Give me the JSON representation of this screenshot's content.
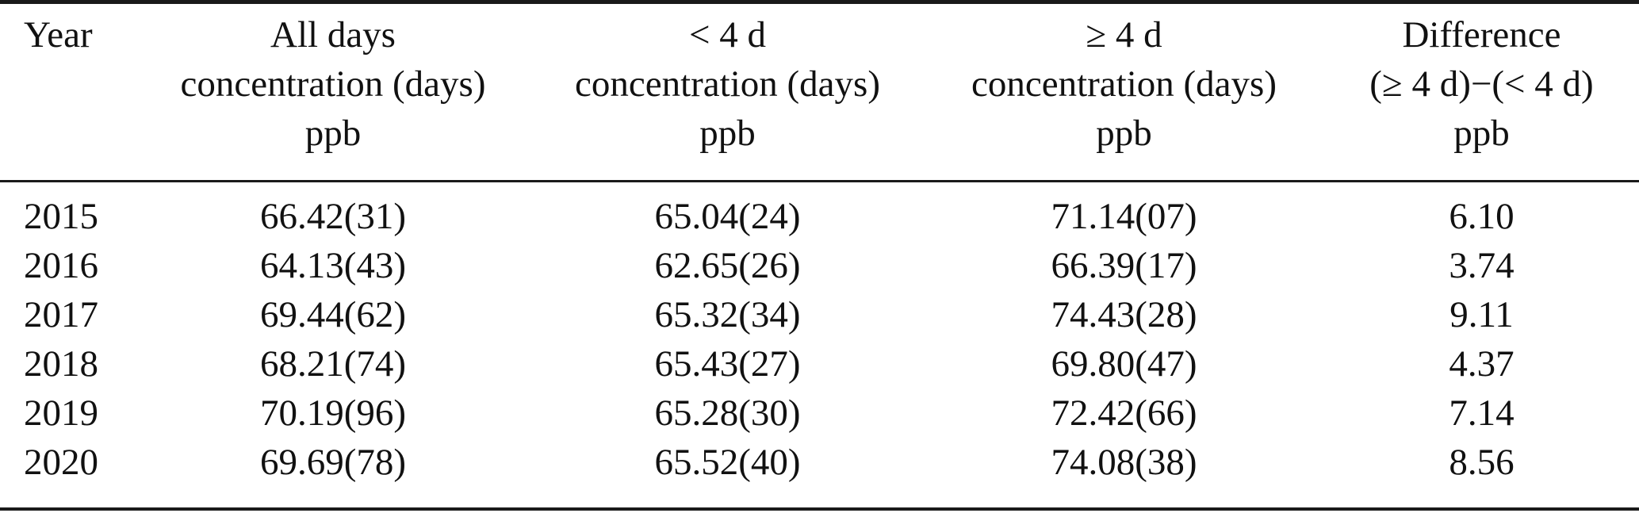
{
  "table": {
    "header": {
      "col1": {
        "line1": "Year",
        "line2": "",
        "line3": ""
      },
      "col2": {
        "line1": "All days",
        "line2": "concentration (days)",
        "line3": "ppb"
      },
      "col3": {
        "line1": "< 4 d",
        "line2": "concentration (days)",
        "line3": "ppb"
      },
      "col4": {
        "line1": "≥ 4 d",
        "line2": "concentration (days)",
        "line3": "ppb"
      },
      "col5": {
        "line1": "Difference",
        "line2": "(≥ 4 d)−(< 4 d)",
        "line3": "ppb"
      }
    },
    "rows": [
      {
        "year": "2015",
        "all_days": "66.42(31)",
        "lt_4d": "65.04(24)",
        "ge_4d": "71.14(07)",
        "difference": "6.10"
      },
      {
        "year": "2016",
        "all_days": "64.13(43)",
        "lt_4d": "62.65(26)",
        "ge_4d": "66.39(17)",
        "difference": "3.74"
      },
      {
        "year": "2017",
        "all_days": "69.44(62)",
        "lt_4d": "65.32(34)",
        "ge_4d": "74.43(28)",
        "difference": "9.11"
      },
      {
        "year": "2018",
        "all_days": "68.21(74)",
        "lt_4d": "65.43(27)",
        "ge_4d": "69.80(47)",
        "difference": "4.37"
      },
      {
        "year": "2019",
        "all_days": "70.19(96)",
        "lt_4d": "65.28(30)",
        "ge_4d": "72.42(66)",
        "difference": "7.14"
      },
      {
        "year": "2020",
        "all_days": "69.69(78)",
        "lt_4d": "65.52(40)",
        "ge_4d": "74.08(38)",
        "difference": "8.56"
      }
    ]
  },
  "colors": {
    "background": "#ffffff",
    "text": "#111111",
    "rule": "#1a1a1a"
  }
}
